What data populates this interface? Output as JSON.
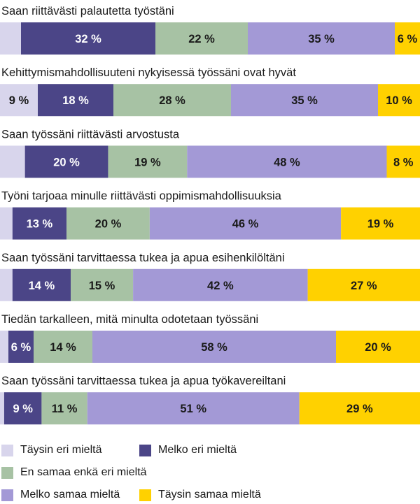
{
  "chart_data": {
    "type": "bar",
    "orientation": "horizontal-stacked-100",
    "title": "",
    "xlabel": "",
    "ylabel": "",
    "xlim": [
      0,
      100
    ],
    "grid": false,
    "legend_position": "bottom",
    "value_suffix": " %",
    "categories": [
      "Saan riittävästi palautetta työstäni",
      "Kehittymismahdollisuuteni nykyisessä työssäni ovat hyvät",
      "Saan työssäni riittävästi arvostusta",
      "Työni tarjoaa minulle riittävästi oppimismahdollisuuksia",
      "Saan työssäni tarvittaessa tukea ja apua esihenkilöltäni",
      "Tiedän tarkalleen, mitä minulta odotetaan työssäni",
      "Saan työssäni tarvittaessa tukea ja apua työkavereiltani"
    ],
    "series": [
      {
        "name": "Täysin eri mieltä",
        "color": "#d8d5ec",
        "values": [
          5,
          9,
          6,
          3,
          3,
          2,
          1
        ],
        "labels_shown": [
          false,
          true,
          false,
          false,
          false,
          false,
          false
        ]
      },
      {
        "name": "Melko eri mieltä",
        "color": "#4b4587",
        "values": [
          32,
          18,
          20,
          13,
          14,
          6,
          9
        ],
        "labels_shown": [
          true,
          true,
          true,
          true,
          true,
          true,
          true
        ]
      },
      {
        "name": "En samaa enkä eri mieltä",
        "color": "#a7c2a4",
        "values": [
          22,
          28,
          19,
          20,
          15,
          14,
          11
        ],
        "labels_shown": [
          true,
          true,
          true,
          true,
          true,
          true,
          true
        ]
      },
      {
        "name": "Melko samaa mieltä",
        "color": "#a399d6",
        "values": [
          35,
          35,
          48,
          46,
          42,
          58,
          51
        ],
        "labels_shown": [
          true,
          true,
          true,
          true,
          true,
          true,
          true
        ]
      },
      {
        "name": "Täysin samaa mieltä",
        "color": "#ffd100",
        "values": [
          6,
          10,
          8,
          19,
          27,
          20,
          29
        ],
        "labels_shown": [
          true,
          true,
          true,
          true,
          true,
          true,
          true
        ]
      }
    ]
  }
}
